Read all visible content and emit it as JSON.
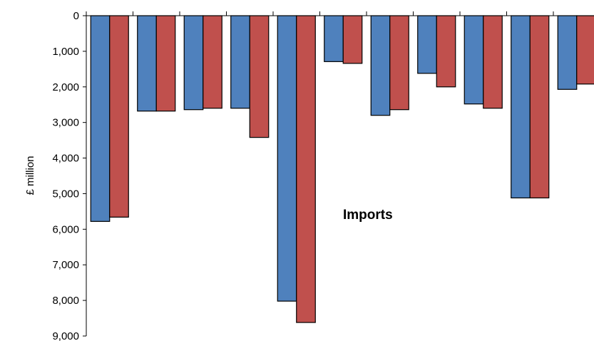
{
  "chart_data": {
    "type": "bar",
    "ylabel": "£ million",
    "annotation": "Imports",
    "yaxis_inverted": true,
    "ylim": [
      0,
      9000
    ],
    "ytick_labels": [
      "0",
      "1,000",
      "2,000",
      "3,000",
      "4,000",
      "5,000",
      "6,000",
      "7,000",
      "8,000",
      "9,000"
    ],
    "categories": [
      "",
      "",
      "",
      "",
      "",
      "",
      "",
      "",
      "",
      "",
      ""
    ],
    "colors": [
      "#4f81bd",
      "#c0504d"
    ],
    "series": [
      {
        "values": [
          5780,
          2680,
          2640,
          2600,
          8020,
          1290,
          2800,
          1620,
          2480,
          5120,
          2070
        ]
      },
      {
        "values": [
          5660,
          2680,
          2600,
          3420,
          8620,
          1340,
          2640,
          2000,
          2600,
          5120,
          1920
        ]
      }
    ]
  }
}
